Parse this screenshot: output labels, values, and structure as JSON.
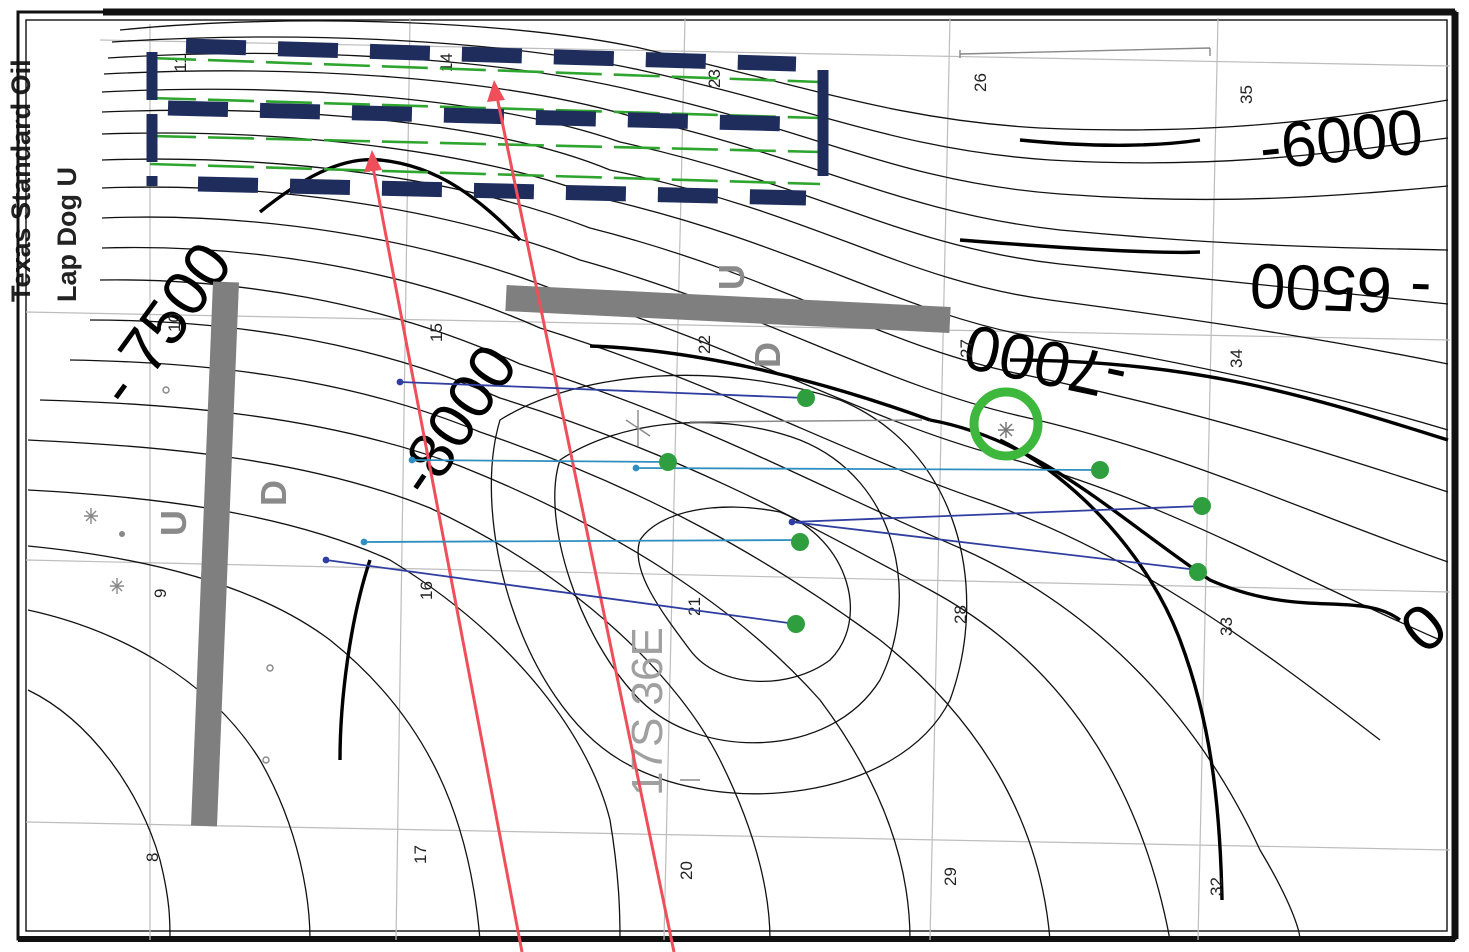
{
  "title": {
    "line1": "Texas Standard Oil",
    "line2": "Lap Dog U"
  },
  "township_label": "17S 36E",
  "contour_labels": {
    "c7500": "- 7500",
    "c8000": "-8000",
    "c7000": "-7000",
    "c6500": "- 6500",
    "c6000": "-6000",
    "c_cut": "0"
  },
  "fault_labels": {
    "west_up": "U",
    "west_down": "D",
    "north_up": "U",
    "north_down": "D"
  },
  "sections": {
    "s11": "11",
    "s14": "14",
    "s23": "23",
    "s26": "26",
    "s35": "35",
    "s10": "10",
    "s15": "15",
    "s22": "22",
    "s27": "27",
    "s34": "34",
    "s9": "9",
    "s16": "16",
    "s21": "21",
    "s28": "28",
    "s33": "33",
    "s8": "8",
    "s17": "17",
    "s20": "20",
    "s29": "29",
    "s32": "32"
  },
  "colors": {
    "contour": "#111111",
    "fault": "#7f7f7f",
    "unit_outline": "#1f2d5c",
    "unit_lateral": "#2ea52e",
    "pointer_arrow": "#ef4f5a",
    "well_dot": "#2e9e3e",
    "lateral_dark": "#2f3ea0",
    "lateral_light": "#2f8fc0",
    "highlight_circle": "#3db83d",
    "grid": "#bdbdbd"
  }
}
